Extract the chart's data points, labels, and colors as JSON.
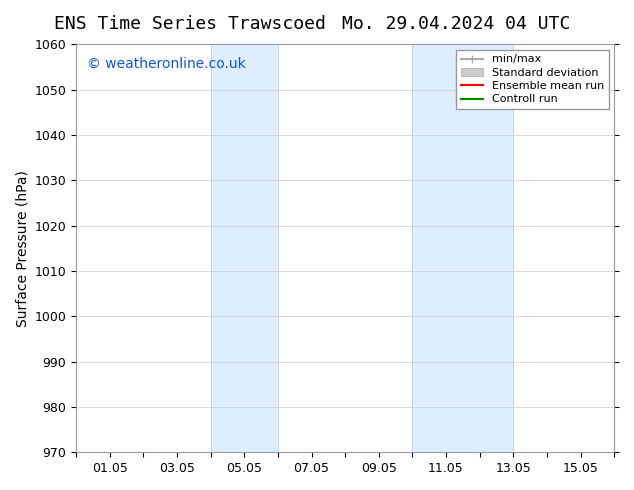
{
  "title_left": "ENS Time Series Trawscoed",
  "title_right": "Mo. 29.04.2024 04 UTC",
  "ylabel": "Surface Pressure (hPa)",
  "xlim": [
    0,
    16
  ],
  "ylim": [
    970,
    1060
  ],
  "yticks": [
    970,
    980,
    990,
    1000,
    1010,
    1020,
    1030,
    1040,
    1050,
    1060
  ],
  "xtick_positions": [
    0,
    1,
    2,
    3,
    4,
    5,
    6,
    7,
    8,
    9,
    10,
    11,
    12,
    13,
    14,
    15,
    16
  ],
  "xtick_labels": [
    "",
    "01.05",
    "",
    "03.05",
    "",
    "05.05",
    "",
    "07.05",
    "",
    "09.05",
    "",
    "11.05",
    "",
    "13.05",
    "",
    "15.05",
    ""
  ],
  "shaded_regions": [
    {
      "xmin": 4.0,
      "xmax": 6.0
    },
    {
      "xmin": 10.0,
      "xmax": 13.0
    }
  ],
  "shaded_color": "#ddeeff",
  "shaded_edge_color": "#aaccee",
  "background_color": "#ffffff",
  "grid_color": "#cccccc",
  "watermark_text": "© weatheronline.co.uk",
  "watermark_color": "#1155cc",
  "title_fontsize": 13,
  "tick_fontsize": 9,
  "ylabel_fontsize": 10,
  "watermark_fontsize": 10,
  "legend_minmax_color": "#aaaaaa",
  "legend_std_color": "#cccccc",
  "legend_ens_color": "#ff0000",
  "legend_ctrl_color": "#008800"
}
